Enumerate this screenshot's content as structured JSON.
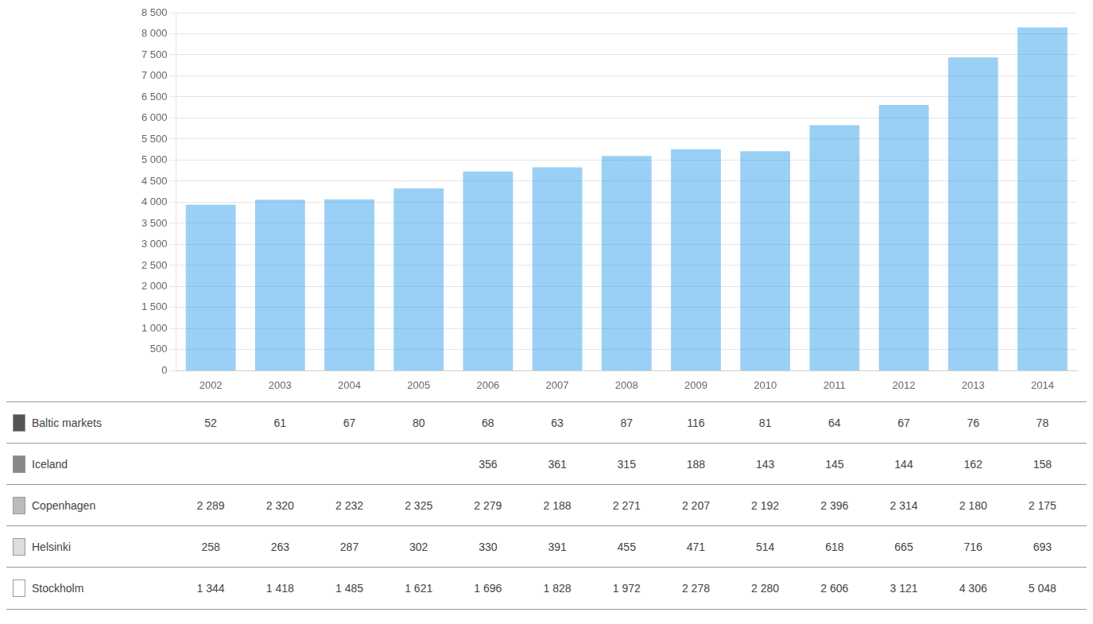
{
  "chart_data": {
    "type": "bar",
    "categories": [
      "2002",
      "2003",
      "2004",
      "2005",
      "2006",
      "2007",
      "2008",
      "2009",
      "2010",
      "2011",
      "2012",
      "2013",
      "2014"
    ],
    "values": [
      3943,
      4062,
      4071,
      4328,
      4729,
      4831,
      5100,
      5260,
      5210,
      5829,
      6311,
      7440,
      8152
    ],
    "ylim": [
      0,
      8500
    ],
    "yticks": [
      0,
      500,
      {
        "value": 1000,
        "label": "1 000"
      },
      {
        "value": 1500,
        "label": "1 500"
      },
      {
        "value": 2000,
        "label": "2 000"
      },
      {
        "value": 2500,
        "label": "2 500"
      },
      {
        "value": 3000,
        "label": "3 000"
      },
      {
        "value": 3500,
        "label": "3 500"
      },
      {
        "value": 4000,
        "label": "4 000"
      },
      {
        "value": 4500,
        "label": "4 500"
      },
      {
        "value": 5000,
        "label": "5 000"
      },
      {
        "value": 5500,
        "label": "5 500"
      },
      {
        "value": 6000,
        "label": "6 000"
      },
      {
        "value": 6500,
        "label": "6 500"
      },
      {
        "value": 7000,
        "label": "7 000"
      },
      {
        "value": 7500,
        "label": "7 500"
      },
      {
        "value": 8000,
        "label": "8 000"
      },
      {
        "value": 8500,
        "label": "8 500"
      }
    ],
    "grid": true,
    "table": [
      {
        "name": "Baltic markets",
        "color": "#555555",
        "values": [
          52,
          61,
          67,
          80,
          68,
          63,
          87,
          116,
          81,
          64,
          67,
          76,
          78
        ],
        "value_labels": [
          "52",
          "61",
          "67",
          "80",
          "68",
          "63",
          "87",
          "116",
          "81",
          "64",
          "67",
          "76",
          "78"
        ]
      },
      {
        "name": "Iceland",
        "color": "#888888",
        "values": [
          null,
          null,
          null,
          null,
          356,
          361,
          315,
          188,
          143,
          145,
          144,
          162,
          158
        ],
        "value_labels": [
          null,
          null,
          null,
          null,
          "356",
          "361",
          "315",
          "188",
          "143",
          "145",
          "144",
          "162",
          "158"
        ]
      },
      {
        "name": "Copenhagen",
        "color": "#bbbbbb",
        "values": [
          2289,
          2320,
          2232,
          2325,
          2279,
          2188,
          2271,
          2207,
          2192,
          2396,
          2314,
          2180,
          2175
        ],
        "value_labels": [
          "2 289",
          "2 320",
          "2 232",
          "2 325",
          "2 279",
          "2 188",
          "2 271",
          "2 207",
          "2 192",
          "2 396",
          "2 314",
          "2 180",
          "2 175"
        ]
      },
      {
        "name": "Helsinki",
        "color": "#dddddd",
        "values": [
          258,
          263,
          287,
          302,
          330,
          391,
          455,
          471,
          514,
          618,
          665,
          716,
          693
        ],
        "value_labels": [
          "258",
          "263",
          "287",
          "302",
          "330",
          "391",
          "455",
          "471",
          "514",
          "618",
          "665",
          "716",
          "693"
        ]
      },
      {
        "name": "Stockholm",
        "color": "#ffffff",
        "values": [
          1344,
          1418,
          1485,
          1621,
          1696,
          1828,
          1972,
          2278,
          2280,
          2606,
          3121,
          4306,
          5048
        ],
        "value_labels": [
          "1 344",
          "1 418",
          "1 485",
          "1 621",
          "1 696",
          "1 828",
          "1 972",
          "2 278",
          "2 280",
          "2 606",
          "3 121",
          "4 306",
          "5 048"
        ]
      }
    ]
  }
}
